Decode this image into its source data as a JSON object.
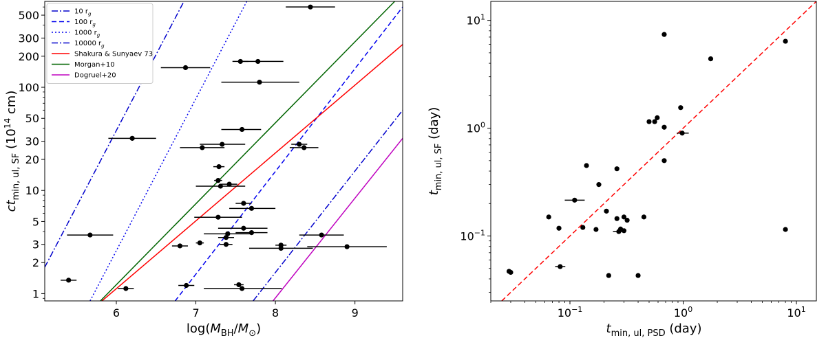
{
  "chart_data": [
    {
      "type": "scatter",
      "x_scale": "linear",
      "y_scale": "log",
      "xlim": [
        5.1,
        9.6
      ],
      "ylim": [
        0.85,
        680
      ],
      "xlabel": {
        "main": "log(",
        "var": "M",
        "sub": "BH",
        "mid": "/",
        "var2": "M",
        "sub2": "⊙",
        "end": ")"
      },
      "ylabel": {
        "pre": "ct",
        "sub": "min, ul, SF",
        "post": " (10",
        "sup": "14",
        "end": " cm)"
      },
      "x_ticks": [
        {
          "v": 6,
          "label": "6"
        },
        {
          "v": 7,
          "label": "7"
        },
        {
          "v": 8,
          "label": "8"
        },
        {
          "v": 9,
          "label": "9"
        }
      ],
      "y_ticks": [
        {
          "v": 1,
          "label": "1"
        },
        {
          "v": 2,
          "label": "2"
        },
        {
          "v": 3,
          "label": "3"
        },
        {
          "v": 5,
          "label": "5"
        },
        {
          "v": 10,
          "label": "10"
        },
        {
          "v": 20,
          "label": "20"
        },
        {
          "v": 30,
          "label": "30"
        },
        {
          "v": 50,
          "label": "50"
        },
        {
          "v": 100,
          "label": "100"
        },
        {
          "v": 200,
          "label": "200"
        },
        {
          "v": 300,
          "label": "300"
        },
        {
          "v": 500,
          "label": "500"
        }
      ],
      "legend": {
        "position": "top-left",
        "entries": [
          {
            "label": "10 r",
            "sub": "g",
            "color": "#0000cc",
            "dash": "dashdot"
          },
          {
            "label": "100 r",
            "sub": "g",
            "color": "#0000ee",
            "dash": "dashed"
          },
          {
            "label": "1000 r",
            "sub": "g",
            "color": "#0000ee",
            "dash": "dotted"
          },
          {
            "label": "10000 r",
            "sub": "g",
            "color": "#0000cc",
            "dash": "dashdot"
          },
          {
            "label": "Shakura & Sunyaev 73",
            "color": "#ff0000",
            "dash": "solid"
          },
          {
            "label": "Morgan+10",
            "color": "#006400",
            "dash": "solid"
          },
          {
            "label": "Dogruel+20",
            "color": "#bf00bf",
            "dash": "solid"
          }
        ]
      },
      "lines": [
        {
          "name": "10 r_g",
          "color": "#0000cc",
          "dash": "dashdot",
          "points": [
            [
              5.1,
              1.8
            ],
            [
              6.85,
              680
            ]
          ]
        },
        {
          "name": "100 r_g",
          "color": "#0000ee",
          "dash": "dashed",
          "points": [
            [
              6.74,
              0.85
            ],
            [
              9.6,
              600
            ]
          ]
        },
        {
          "name": "1000 r_g",
          "color": "#0000ee",
          "dash": "dotted",
          "points": [
            [
              5.67,
              0.85
            ],
            [
              7.64,
              680
            ]
          ]
        },
        {
          "name": "10000 r_g",
          "color": "#0000cc",
          "dash": "dashdot",
          "points": [
            [
              7.72,
              0.85
            ],
            [
              9.6,
              60
            ]
          ]
        },
        {
          "name": "Shakura & Sunyaev 73",
          "color": "#ff0000",
          "dash": "solid",
          "points": [
            [
              5.82,
              0.85
            ],
            [
              9.6,
              260
            ]
          ]
        },
        {
          "name": "Morgan+10",
          "color": "#006400",
          "dash": "solid",
          "points": [
            [
              5.8,
              0.85
            ],
            [
              9.5,
              680
            ]
          ]
        },
        {
          "name": "Dogruel+20",
          "color": "#bf00bf",
          "dash": "solid",
          "points": [
            [
              7.97,
              0.85
            ],
            [
              9.6,
              32
            ]
          ]
        }
      ],
      "points": [
        {
          "x": 8.44,
          "y": 600,
          "xerr": [
            8.13,
            8.75
          ]
        },
        {
          "x": 7.56,
          "y": 178,
          "xerr": [
            7.46,
            7.66
          ]
        },
        {
          "x": 7.78,
          "y": 178,
          "xerr": [
            7.56,
            8.1
          ]
        },
        {
          "x": 6.87,
          "y": 155,
          "xerr": [
            6.56,
            7.18
          ]
        },
        {
          "x": 7.8,
          "y": 112,
          "xerr": [
            7.32,
            8.3
          ]
        },
        {
          "x": 7.58,
          "y": 39,
          "xerr": [
            7.32,
            7.82
          ]
        },
        {
          "x": 6.2,
          "y": 32,
          "xerr": [
            5.9,
            6.5
          ]
        },
        {
          "x": 7.33,
          "y": 28,
          "xerr": [
            7.05,
            7.62
          ]
        },
        {
          "x": 7.08,
          "y": 26,
          "xerr": [
            6.8,
            7.36
          ]
        },
        {
          "x": 8.3,
          "y": 28,
          "xerr": [
            8.2,
            8.4
          ]
        },
        {
          "x": 8.36,
          "y": 26,
          "xerr": [
            8.18,
            8.54
          ]
        },
        {
          "x": 7.29,
          "y": 17,
          "xerr": [
            7.22,
            7.36
          ]
        },
        {
          "x": 7.28,
          "y": 12.5,
          "xerr": [
            7.23,
            7.33
          ]
        },
        {
          "x": 7.42,
          "y": 11.5,
          "xerr": [
            7.32,
            7.52
          ]
        },
        {
          "x": 7.31,
          "y": 11,
          "xerr": [
            7.0,
            7.62
          ]
        },
        {
          "x": 7.6,
          "y": 7.5,
          "xerr": [
            7.5,
            7.7
          ]
        },
        {
          "x": 7.7,
          "y": 6.7,
          "xerr": [
            7.42,
            8.0
          ]
        },
        {
          "x": 7.28,
          "y": 5.5,
          "xerr": [
            6.98,
            7.58
          ]
        },
        {
          "x": 7.6,
          "y": 4.3,
          "xerr": [
            7.28,
            7.9
          ]
        },
        {
          "x": 7.4,
          "y": 3.8,
          "xerr": [
            7.1,
            7.7
          ]
        },
        {
          "x": 7.7,
          "y": 3.9,
          "xerr": [
            7.5,
            7.9
          ]
        },
        {
          "x": 5.67,
          "y": 3.7,
          "xerr": [
            5.38,
            5.96
          ]
        },
        {
          "x": 8.58,
          "y": 3.7,
          "xerr": [
            8.3,
            8.86
          ]
        },
        {
          "x": 7.38,
          "y": 3.5,
          "xerr": [
            7.28,
            7.48
          ]
        },
        {
          "x": 7.05,
          "y": 3.1,
          "xerr": [
            7.0,
            7.1
          ]
        },
        {
          "x": 7.38,
          "y": 3.0,
          "xerr": [
            7.3,
            7.46
          ]
        },
        {
          "x": 6.8,
          "y": 2.9,
          "xerr": [
            6.7,
            6.9
          ]
        },
        {
          "x": 8.07,
          "y": 2.95,
          "xerr": [
            8.0,
            8.14
          ]
        },
        {
          "x": 8.07,
          "y": 2.75,
          "xerr": [
            7.67,
            8.47
          ]
        },
        {
          "x": 8.9,
          "y": 2.85,
          "xerr": [
            8.4,
            9.4
          ]
        },
        {
          "x": 5.4,
          "y": 1.35,
          "xerr": [
            5.3,
            5.5
          ]
        },
        {
          "x": 6.12,
          "y": 1.12,
          "xerr": [
            6.02,
            6.22
          ]
        },
        {
          "x": 6.88,
          "y": 1.2,
          "xerr": [
            6.78,
            6.98
          ]
        },
        {
          "x": 7.54,
          "y": 1.22,
          "xerr": [
            7.48,
            7.6
          ]
        },
        {
          "x": 7.58,
          "y": 1.12,
          "xerr": [
            7.1,
            8.08
          ]
        }
      ]
    },
    {
      "type": "scatter",
      "x_scale": "log",
      "y_scale": "log",
      "xlim": [
        0.02,
        15
      ],
      "ylim": [
        0.025,
        15
      ],
      "xlabel": {
        "pre": "t",
        "sub": "min, ul, PSD",
        "post": " (day)"
      },
      "ylabel": {
        "pre": "t",
        "sub": "min, ul, SF",
        "post": " (day)"
      },
      "x_ticks": [
        {
          "v": 0.1,
          "base": "10",
          "exp": "−1"
        },
        {
          "v": 1,
          "base": "10",
          "exp": "0"
        },
        {
          "v": 10,
          "base": "10",
          "exp": "1"
        }
      ],
      "y_ticks": [
        {
          "v": 0.1,
          "base": "10",
          "exp": "−1"
        },
        {
          "v": 1,
          "base": "10",
          "exp": "0"
        },
        {
          "v": 10,
          "base": "10",
          "exp": "1"
        }
      ],
      "lines": [
        {
          "name": "one-to-one",
          "color": "#ff0000",
          "dash": "dashed",
          "points": [
            [
              0.02,
              0.02
            ],
            [
              15,
              15
            ]
          ]
        }
      ],
      "points": [
        {
          "x": 0.68,
          "y": 7.4
        },
        {
          "x": 8.0,
          "y": 6.4
        },
        {
          "x": 1.75,
          "y": 4.4
        },
        {
          "x": 0.95,
          "y": 1.55
        },
        {
          "x": 0.59,
          "y": 1.25
        },
        {
          "x": 0.5,
          "y": 1.15
        },
        {
          "x": 0.56,
          "y": 1.15
        },
        {
          "x": 0.68,
          "y": 1.02
        },
        {
          "x": 0.98,
          "y": 0.9,
          "xerr": [
            0.88,
            1.12
          ]
        },
        {
          "x": 0.68,
          "y": 0.5
        },
        {
          "x": 0.14,
          "y": 0.45
        },
        {
          "x": 0.26,
          "y": 0.42
        },
        {
          "x": 0.18,
          "y": 0.3
        },
        {
          "x": 0.11,
          "y": 0.215,
          "xerr": [
            0.09,
            0.135
          ]
        },
        {
          "x": 0.21,
          "y": 0.17
        },
        {
          "x": 0.065,
          "y": 0.15
        },
        {
          "x": 0.26,
          "y": 0.145
        },
        {
          "x": 0.3,
          "y": 0.15
        },
        {
          "x": 0.32,
          "y": 0.14
        },
        {
          "x": 0.45,
          "y": 0.15
        },
        {
          "x": 0.08,
          "y": 0.118
        },
        {
          "x": 0.13,
          "y": 0.12
        },
        {
          "x": 0.17,
          "y": 0.115
        },
        {
          "x": 0.28,
          "y": 0.116
        },
        {
          "x": 0.3,
          "y": 0.112
        },
        {
          "x": 0.27,
          "y": 0.11,
          "xerr": [
            0.24,
            0.31
          ]
        },
        {
          "x": 8.0,
          "y": 0.115
        },
        {
          "x": 0.082,
          "y": 0.052,
          "xerr": [
            0.074,
            0.091
          ]
        },
        {
          "x": 0.029,
          "y": 0.047
        },
        {
          "x": 0.03,
          "y": 0.046
        },
        {
          "x": 0.22,
          "y": 0.043
        },
        {
          "x": 0.4,
          "y": 0.043
        }
      ]
    }
  ]
}
